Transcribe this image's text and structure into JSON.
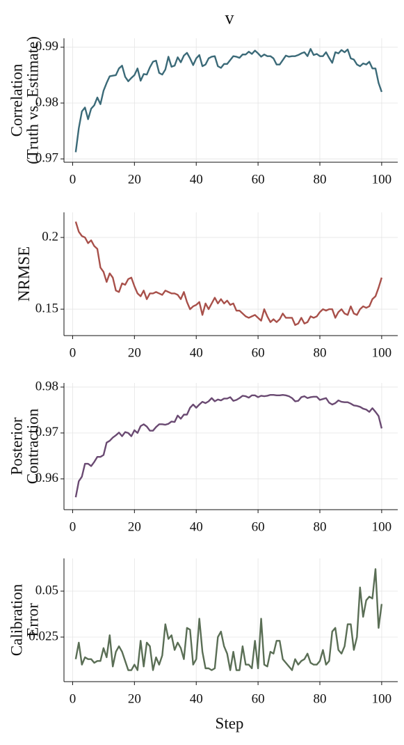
{
  "title": "v",
  "chart_data": [
    {
      "type": "line",
      "ylabel": [
        "Correlation",
        "(Truth vs. Estimate)"
      ],
      "color": "#3b6a78",
      "grid": true,
      "x": [
        1,
        2,
        3,
        4,
        5,
        6,
        7,
        8,
        9,
        10,
        11,
        12,
        13,
        14,
        15,
        16,
        17,
        18,
        19,
        20,
        21,
        22,
        23,
        24,
        25,
        26,
        27,
        28,
        29,
        30,
        31,
        32,
        33,
        34,
        35,
        36,
        37,
        38,
        39,
        40,
        41,
        42,
        43,
        44,
        45,
        46,
        47,
        48,
        49,
        50,
        51,
        52,
        53,
        54,
        55,
        56,
        57,
        58,
        59,
        60,
        61,
        62,
        63,
        64,
        65,
        66,
        67,
        68,
        69,
        70,
        71,
        72,
        73,
        74,
        75,
        76,
        77,
        78,
        79,
        80,
        81,
        82,
        83,
        84,
        85,
        86,
        87,
        88,
        89,
        90,
        91,
        92,
        93,
        94,
        95,
        96,
        97,
        98,
        99,
        100
      ],
      "values": [
        0.9712,
        0.9755,
        0.9785,
        0.9792,
        0.9771,
        0.979,
        0.9796,
        0.981,
        0.9798,
        0.9822,
        0.9836,
        0.9848,
        0.9849,
        0.985,
        0.9862,
        0.9867,
        0.9847,
        0.9839,
        0.9845,
        0.985,
        0.9862,
        0.984,
        0.9852,
        0.9851,
        0.9864,
        0.9874,
        0.9876,
        0.9854,
        0.9851,
        0.986,
        0.9883,
        0.9865,
        0.9867,
        0.9882,
        0.9873,
        0.9885,
        0.989,
        0.988,
        0.9868,
        0.988,
        0.9886,
        0.9866,
        0.9869,
        0.988,
        0.9883,
        0.9884,
        0.9866,
        0.9863,
        0.987,
        0.987,
        0.9877,
        0.9884,
        0.9883,
        0.9881,
        0.9887,
        0.9887,
        0.9892,
        0.9888,
        0.9894,
        0.9889,
        0.9883,
        0.9887,
        0.9884,
        0.9884,
        0.988,
        0.9869,
        0.9869,
        0.9877,
        0.9885,
        0.9883,
        0.9884,
        0.9884,
        0.9886,
        0.9889,
        0.9891,
        0.9884,
        0.9897,
        0.9886,
        0.9888,
        0.9884,
        0.9884,
        0.9891,
        0.9881,
        0.9872,
        0.9891,
        0.9889,
        0.9895,
        0.9891,
        0.9896,
        0.988,
        0.9878,
        0.9869,
        0.9866,
        0.9871,
        0.9869,
        0.9874,
        0.9862,
        0.9862,
        0.9836,
        0.982
      ],
      "xlim": [
        -2.8,
        105.2
      ],
      "xticks": [
        0,
        20,
        40,
        60,
        80,
        100
      ],
      "ylim": [
        0.9694,
        0.9916
      ],
      "yticks": [
        0.97,
        0.98,
        0.99
      ]
    },
    {
      "type": "line",
      "ylabel": [
        "NRMSE"
      ],
      "color": "#a8504a",
      "grid": true,
      "x": [
        1,
        2,
        3,
        4,
        5,
        6,
        7,
        8,
        9,
        10,
        11,
        12,
        13,
        14,
        15,
        16,
        17,
        18,
        19,
        20,
        21,
        22,
        23,
        24,
        25,
        26,
        27,
        28,
        29,
        30,
        31,
        32,
        33,
        34,
        35,
        36,
        37,
        38,
        39,
        40,
        41,
        42,
        43,
        44,
        45,
        46,
        47,
        48,
        49,
        50,
        51,
        52,
        53,
        54,
        55,
        56,
        57,
        58,
        59,
        60,
        61,
        62,
        63,
        64,
        65,
        66,
        67,
        68,
        69,
        70,
        71,
        72,
        73,
        74,
        75,
        76,
        77,
        78,
        79,
        80,
        81,
        82,
        83,
        84,
        85,
        86,
        87,
        88,
        89,
        90,
        91,
        92,
        93,
        94,
        95,
        96,
        97,
        98,
        99,
        100
      ],
      "values": [
        0.211,
        0.204,
        0.201,
        0.2,
        0.196,
        0.198,
        0.194,
        0.192,
        0.179,
        0.176,
        0.169,
        0.175,
        0.172,
        0.163,
        0.162,
        0.168,
        0.167,
        0.171,
        0.172,
        0.166,
        0.161,
        0.159,
        0.163,
        0.157,
        0.161,
        0.161,
        0.162,
        0.161,
        0.16,
        0.163,
        0.162,
        0.161,
        0.161,
        0.16,
        0.157,
        0.162,
        0.155,
        0.15,
        0.152,
        0.153,
        0.155,
        0.146,
        0.154,
        0.15,
        0.154,
        0.158,
        0.154,
        0.157,
        0.154,
        0.156,
        0.153,
        0.154,
        0.149,
        0.149,
        0.147,
        0.145,
        0.144,
        0.145,
        0.146,
        0.144,
        0.142,
        0.15,
        0.145,
        0.141,
        0.143,
        0.141,
        0.143,
        0.147,
        0.144,
        0.144,
        0.144,
        0.139,
        0.14,
        0.144,
        0.14,
        0.141,
        0.145,
        0.144,
        0.145,
        0.148,
        0.15,
        0.149,
        0.15,
        0.15,
        0.144,
        0.148,
        0.15,
        0.147,
        0.146,
        0.152,
        0.147,
        0.146,
        0.15,
        0.152,
        0.151,
        0.152,
        0.157,
        0.159,
        0.165,
        0.172
      ],
      "xlim": [
        -2.8,
        105.2
      ],
      "xticks": [
        0,
        20,
        40,
        60,
        80,
        100
      ],
      "ylim": [
        0.1316,
        0.2175
      ],
      "yticks": [
        0.15,
        0.2
      ]
    },
    {
      "type": "line",
      "ylabel": [
        "Posterior",
        "Contraction"
      ],
      "color": "#6a4a72",
      "grid": true,
      "x": [
        1,
        2,
        3,
        4,
        5,
        6,
        7,
        8,
        9,
        10,
        11,
        12,
        13,
        14,
        15,
        16,
        17,
        18,
        19,
        20,
        21,
        22,
        23,
        24,
        25,
        26,
        27,
        28,
        29,
        30,
        31,
        32,
        33,
        34,
        35,
        36,
        37,
        38,
        39,
        40,
        41,
        42,
        43,
        44,
        45,
        46,
        47,
        48,
        49,
        50,
        51,
        52,
        53,
        54,
        55,
        56,
        57,
        58,
        59,
        60,
        61,
        62,
        63,
        64,
        65,
        66,
        67,
        68,
        69,
        70,
        71,
        72,
        73,
        74,
        75,
        76,
        77,
        78,
        79,
        80,
        81,
        82,
        83,
        84,
        85,
        86,
        87,
        88,
        89,
        90,
        91,
        92,
        93,
        94,
        95,
        96,
        97,
        98,
        99,
        100
      ],
      "values": [
        0.956,
        0.9595,
        0.9605,
        0.9633,
        0.9633,
        0.9628,
        0.9637,
        0.9648,
        0.9648,
        0.9652,
        0.9679,
        0.9683,
        0.969,
        0.9695,
        0.9701,
        0.9693,
        0.9702,
        0.97,
        0.9693,
        0.9706,
        0.97,
        0.9715,
        0.9719,
        0.9714,
        0.9705,
        0.9705,
        0.9713,
        0.9719,
        0.9719,
        0.9718,
        0.972,
        0.9725,
        0.9724,
        0.9738,
        0.9731,
        0.974,
        0.974,
        0.9755,
        0.9762,
        0.9755,
        0.9762,
        0.9768,
        0.9765,
        0.9769,
        0.9776,
        0.9769,
        0.9773,
        0.9771,
        0.9775,
        0.9775,
        0.9778,
        0.977,
        0.9772,
        0.9776,
        0.9781,
        0.978,
        0.9777,
        0.9782,
        0.9782,
        0.9778,
        0.9781,
        0.978,
        0.9781,
        0.9783,
        0.9783,
        0.9782,
        0.9782,
        0.9783,
        0.9782,
        0.978,
        0.9776,
        0.9769,
        0.977,
        0.9778,
        0.978,
        0.9776,
        0.9778,
        0.9779,
        0.9779,
        0.9772,
        0.9774,
        0.9776,
        0.9766,
        0.9762,
        0.9765,
        0.9771,
        0.9768,
        0.9767,
        0.9767,
        0.9764,
        0.976,
        0.9759,
        0.9757,
        0.9753,
        0.9751,
        0.9746,
        0.9754,
        0.9746,
        0.9737,
        0.971
      ],
      "xlim": [
        -2.8,
        105.2
      ],
      "xticks": [
        0,
        20,
        40,
        60,
        80,
        100
      ],
      "ylim": [
        0.9533,
        0.9809
      ],
      "yticks": [
        0.96,
        0.97,
        0.98
      ]
    },
    {
      "type": "line",
      "ylabel": [
        "Calibration",
        "Error"
      ],
      "xlabel": "Step",
      "color": "#5a6e55",
      "grid": true,
      "x": [
        1,
        2,
        3,
        4,
        5,
        6,
        7,
        8,
        9,
        10,
        11,
        12,
        13,
        14,
        15,
        16,
        17,
        18,
        19,
        20,
        21,
        22,
        23,
        24,
        25,
        26,
        27,
        28,
        29,
        30,
        31,
        32,
        33,
        34,
        35,
        36,
        37,
        38,
        39,
        40,
        41,
        42,
        43,
        44,
        45,
        46,
        47,
        48,
        49,
        50,
        51,
        52,
        53,
        54,
        55,
        56,
        57,
        58,
        59,
        60,
        61,
        62,
        63,
        64,
        65,
        66,
        67,
        68,
        69,
        70,
        71,
        72,
        73,
        74,
        75,
        76,
        77,
        78,
        79,
        80,
        81,
        82,
        83,
        84,
        85,
        86,
        87,
        88,
        89,
        90,
        91,
        92,
        93,
        94,
        95,
        96,
        97,
        98,
        99,
        100
      ],
      "values": [
        0.013,
        0.022,
        0.01,
        0.014,
        0.013,
        0.013,
        0.011,
        0.012,
        0.012,
        0.019,
        0.014,
        0.026,
        0.009,
        0.017,
        0.02,
        0.017,
        0.012,
        0.007,
        0.007,
        0.01,
        0.007,
        0.023,
        0.009,
        0.022,
        0.02,
        0.007,
        0.014,
        0.01,
        0.015,
        0.032,
        0.024,
        0.026,
        0.018,
        0.022,
        0.019,
        0.013,
        0.03,
        0.029,
        0.01,
        0.013,
        0.035,
        0.017,
        0.008,
        0.008,
        0.007,
        0.008,
        0.025,
        0.028,
        0.02,
        0.016,
        0.007,
        0.017,
        0.007,
        0.007,
        0.02,
        0.01,
        0.01,
        0.008,
        0.023,
        0.008,
        0.035,
        0.01,
        0.009,
        0.017,
        0.016,
        0.023,
        0.023,
        0.013,
        0.011,
        0.009,
        0.007,
        0.013,
        0.01,
        0.012,
        0.013,
        0.016,
        0.011,
        0.01,
        0.01,
        0.012,
        0.018,
        0.01,
        0.012,
        0.028,
        0.03,
        0.018,
        0.016,
        0.02,
        0.032,
        0.032,
        0.018,
        0.025,
        0.052,
        0.036,
        0.045,
        0.047,
        0.046,
        0.062,
        0.03,
        0.043
      ],
      "xlim": [
        -2.8,
        105.2
      ],
      "xticks": [
        0,
        20,
        40,
        60,
        80,
        100
      ],
      "ylim": [
        0.00076,
        0.0678
      ],
      "yticks": [
        0.025,
        0.05
      ]
    }
  ]
}
